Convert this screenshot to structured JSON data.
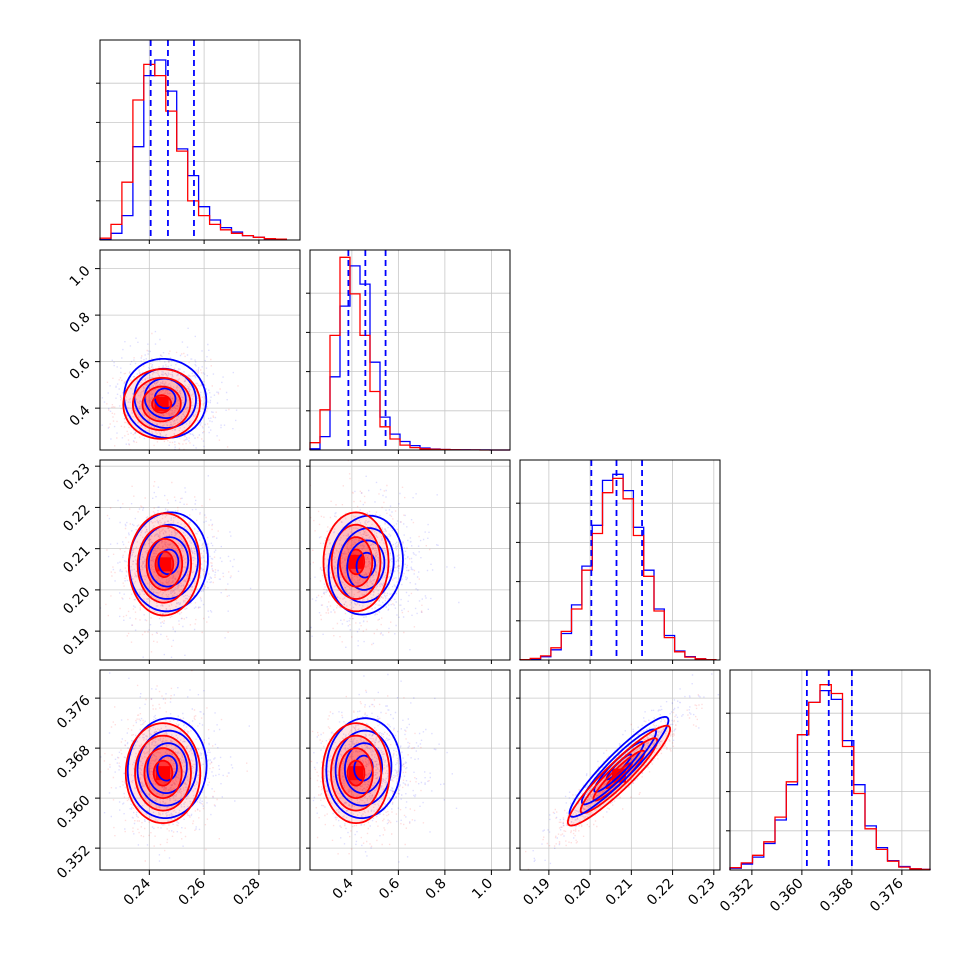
{
  "chart_data": {
    "type": "corner",
    "title": "",
    "grid": true,
    "series": [
      {
        "color": "#0000ff"
      },
      {
        "color": "#ff0000"
      }
    ],
    "parameters": [
      {
        "range": [
          0.222,
          0.295
        ],
        "ticks": [
          0.24,
          0.26,
          0.28
        ],
        "tick_labels": [
          "0.24",
          "0.26",
          "0.28"
        ],
        "quantiles": [
          0.2405,
          0.2468,
          0.2563
        ],
        "bin_edges": [
          0.222,
          0.226,
          0.23,
          0.234,
          0.238,
          0.242,
          0.246,
          0.25,
          0.254,
          0.258,
          0.262,
          0.266,
          0.27,
          0.274,
          0.278,
          0.282,
          0.286,
          0.29
        ],
        "hist_blue": [
          0.01,
          0.15,
          0.55,
          2.1,
          3.7,
          4.05,
          3.35,
          2.05,
          1.45,
          0.75,
          0.45,
          0.28,
          0.18,
          0.1,
          0.06,
          0.03,
          0.02
        ],
        "hist_red": [
          0.04,
          0.35,
          1.3,
          3.15,
          3.95,
          3.7,
          2.9,
          2.0,
          0.88,
          0.55,
          0.35,
          0.23,
          0.15,
          0.1,
          0.06,
          0.03,
          0.02
        ],
        "hist_ymax": 4.5
      },
      {
        "range": [
          0.22,
          1.08
        ],
        "ticks": [
          0.4,
          0.6,
          0.8,
          1.0
        ],
        "tick_labels": [
          "0.4",
          "0.6",
          "0.8",
          "1.0"
        ],
        "quantiles": [
          0.385,
          0.458,
          0.545
        ],
        "bin_edges": [
          0.22,
          0.263,
          0.306,
          0.349,
          0.392,
          0.435,
          0.478,
          0.521,
          0.564,
          0.607,
          0.65,
          0.693,
          0.736,
          0.779,
          0.822,
          0.865,
          0.908,
          0.951,
          0.994,
          1.037,
          1.08
        ],
        "hist_blue": [
          0.05,
          0.55,
          3.0,
          5.9,
          7.55,
          6.8,
          3.6,
          1.35,
          0.65,
          0.35,
          0.18,
          0.08,
          0.04,
          0.02,
          0.01,
          0.01,
          0.005,
          0.005,
          0.002,
          0.002
        ],
        "hist_red": [
          0.3,
          1.65,
          4.7,
          7.9,
          6.4,
          4.7,
          2.4,
          0.95,
          0.45,
          0.2,
          0.1,
          0.05,
          0.03,
          0.02,
          0.01,
          0.005,
          0.003,
          0.002,
          0.001,
          0.001
        ],
        "hist_ymax": 8.2
      },
      {
        "range": [
          0.183,
          0.2315
        ],
        "ticks": [
          0.19,
          0.2,
          0.21,
          0.22,
          0.23
        ],
        "tick_labels": [
          "0.19",
          "0.20",
          "0.21",
          "0.22",
          "0.23"
        ],
        "quantiles": [
          0.2003,
          0.2064,
          0.2126
        ],
        "bin_edges": [
          0.183,
          0.1855,
          0.188,
          0.1905,
          0.193,
          0.1955,
          0.198,
          0.2005,
          0.203,
          0.2055,
          0.208,
          0.2105,
          0.213,
          0.2155,
          0.218,
          0.2205,
          0.223,
          0.2255,
          0.228,
          0.2305
        ],
        "hist_blue": [
          0.01,
          0.03,
          0.08,
          0.25,
          0.65,
          1.35,
          2.3,
          3.3,
          4.4,
          4.55,
          4.15,
          3.25,
          2.2,
          1.25,
          0.6,
          0.22,
          0.08,
          0.03,
          0.01
        ],
        "hist_red": [
          0.01,
          0.04,
          0.1,
          0.3,
          0.7,
          1.25,
          2.2,
          3.1,
          4.1,
          4.45,
          3.95,
          3.05,
          2.05,
          1.2,
          0.55,
          0.2,
          0.07,
          0.03,
          0.01
        ],
        "hist_ymax": 4.9
      },
      {
        "range": [
          0.3485,
          0.3805
        ],
        "ticks": [
          0.352,
          0.36,
          0.368,
          0.376
        ],
        "tick_labels": [
          "0.352",
          "0.360",
          "0.368",
          "0.376"
        ],
        "quantiles": [
          0.3608,
          0.3643,
          0.368
        ],
        "bin_edges": [
          0.3485,
          0.3503,
          0.3521,
          0.3539,
          0.3557,
          0.3575,
          0.3593,
          0.3611,
          0.3629,
          0.3647,
          0.3665,
          0.3683,
          0.3701,
          0.3719,
          0.3737,
          0.3755,
          0.3773,
          0.3791,
          0.3805
        ],
        "hist_blue": [
          0.03,
          0.1,
          0.22,
          0.45,
          0.85,
          1.45,
          2.3,
          2.85,
          3.05,
          2.9,
          2.2,
          1.45,
          0.75,
          0.38,
          0.16,
          0.06,
          0.02,
          0.01
        ],
        "hist_red": [
          0.04,
          0.12,
          0.25,
          0.48,
          0.9,
          1.5,
          2.3,
          2.85,
          3.15,
          3.0,
          2.1,
          1.3,
          0.7,
          0.35,
          0.15,
          0.05,
          0.02,
          0.01
        ],
        "hist_ymax": 3.4
      }
    ],
    "pairs": [
      {
        "row": 1,
        "col": 0,
        "blue": {
          "center": [
            0.2458,
            0.442
          ],
          "sigma": [
            0.0075,
            0.085
          ],
          "rho": -0.05
        },
        "red": {
          "center": [
            0.2445,
            0.418
          ],
          "sigma": [
            0.007,
            0.075
          ],
          "rho": 0.02
        }
      },
      {
        "row": 2,
        "col": 0,
        "blue": {
          "center": [
            0.247,
            0.2068
          ],
          "sigma": [
            0.0072,
            0.006
          ],
          "rho": 0.05
        },
        "red": {
          "center": [
            0.2455,
            0.2062
          ],
          "sigma": [
            0.0065,
            0.0062
          ],
          "rho": 0.02
        }
      },
      {
        "row": 2,
        "col": 1,
        "blue": {
          "center": [
            0.46,
            0.206
          ],
          "sigma": [
            0.08,
            0.006
          ],
          "rho": 0.1
        },
        "red": {
          "center": [
            0.418,
            0.2068
          ],
          "sigma": [
            0.07,
            0.006
          ],
          "rho": 0.0
        }
      },
      {
        "row": 3,
        "col": 0,
        "blue": {
          "center": [
            0.2465,
            0.3648
          ],
          "sigma": [
            0.0072,
            0.004
          ],
          "rho": 0.05
        },
        "red": {
          "center": [
            0.245,
            0.364
          ],
          "sigma": [
            0.0068,
            0.004
          ],
          "rho": 0.0
        }
      },
      {
        "row": 3,
        "col": 1,
        "blue": {
          "center": [
            0.45,
            0.3648
          ],
          "sigma": [
            0.08,
            0.004
          ],
          "rho": 0.05
        },
        "red": {
          "center": [
            0.418,
            0.364
          ],
          "sigma": [
            0.072,
            0.004
          ],
          "rho": 0.0
        }
      },
      {
        "row": 3,
        "col": 2,
        "blue": {
          "center": [
            0.207,
            0.365
          ],
          "sigma": [
            0.006,
            0.004
          ],
          "rho": 0.93
        },
        "red": {
          "center": [
            0.207,
            0.3636
          ],
          "sigma": [
            0.0062,
            0.004
          ],
          "rho": 0.93
        }
      }
    ],
    "contour_levels_sigma": [
      0.5,
      1.0,
      1.5,
      2.0
    ]
  }
}
